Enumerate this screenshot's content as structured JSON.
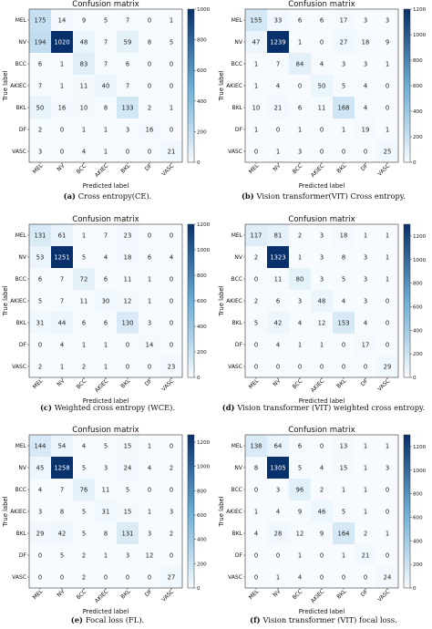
{
  "figure": {
    "class_labels": [
      "MEL",
      "NV",
      "BCC",
      "AKIEC",
      "BKL",
      "DF",
      "VASC"
    ]
  },
  "chart_data": [
    {
      "type": "heatmap",
      "panel": "a",
      "title": "Confusion matrix",
      "xlabel": "Predicted label",
      "ylabel": "True label",
      "caption_letter": "(a)",
      "caption_text": "Cross entropy(CE).",
      "x_categories": [
        "MEL",
        "NV",
        "BCC",
        "AKIEC",
        "BKL",
        "DF",
        "VASC"
      ],
      "y_categories": [
        "MEL",
        "NV",
        "BCC",
        "AKIEC",
        "BKL",
        "DF",
        "VASC"
      ],
      "matrix": [
        [
          175,
          14,
          9,
          5,
          7,
          0,
          1
        ],
        [
          194,
          1020,
          48,
          7,
          59,
          8,
          5
        ],
        [
          6,
          1,
          83,
          7,
          6,
          0,
          0
        ],
        [
          7,
          1,
          11,
          40,
          7,
          0,
          0
        ],
        [
          50,
          16,
          10,
          8,
          133,
          2,
          1
        ],
        [
          2,
          0,
          1,
          1,
          3,
          16,
          0
        ],
        [
          3,
          0,
          4,
          1,
          0,
          0,
          21
        ]
      ],
      "colorbar_range": [
        0,
        1000
      ],
      "colorbar_ticks": [
        "0",
        "200",
        "400",
        "600",
        "800",
        "1000"
      ]
    },
    {
      "type": "heatmap",
      "panel": "b",
      "title": "Confusion matrix",
      "xlabel": "Predicted label",
      "ylabel": "True label",
      "caption_letter": "(b)",
      "caption_text": "Vision transformer(VIT) Cross entropy.",
      "x_categories": [
        "MEL",
        "NV",
        "BCC",
        "AKIEC",
        "BKL",
        "DF",
        "VASC"
      ],
      "y_categories": [
        "MEL",
        "NV",
        "BCC",
        "AKIEC",
        "BKL",
        "DF",
        "VASC"
      ],
      "matrix": [
        [
          155,
          33,
          6,
          6,
          17,
          3,
          3
        ],
        [
          47,
          1239,
          1,
          0,
          27,
          18,
          9
        ],
        [
          1,
          7,
          84,
          4,
          3,
          3,
          1
        ],
        [
          1,
          4,
          0,
          50,
          5,
          4,
          0
        ],
        [
          10,
          21,
          6,
          11,
          168,
          4,
          0
        ],
        [
          1,
          0,
          1,
          0,
          1,
          19,
          1
        ],
        [
          0,
          1,
          3,
          0,
          0,
          0,
          25
        ]
      ],
      "colorbar_range": [
        0,
        1200
      ],
      "colorbar_ticks": [
        "0",
        "200",
        "400",
        "600",
        "800",
        "1000",
        "1200"
      ]
    },
    {
      "type": "heatmap",
      "panel": "c",
      "title": "Confusion matrix",
      "xlabel": "Predicted label",
      "ylabel": "True label",
      "caption_letter": "(c)",
      "caption_text": "Weighted cross entropy (WCE).",
      "x_categories": [
        "MEL",
        "NV",
        "BCC",
        "AKIEC",
        "BKL",
        "DF",
        "VASC"
      ],
      "y_categories": [
        "MEL",
        "NV",
        "BCC",
        "AKIEC",
        "BKL",
        "DF",
        "VASC"
      ],
      "matrix": [
        [
          131,
          61,
          1,
          7,
          23,
          0,
          0
        ],
        [
          53,
          1251,
          5,
          4,
          18,
          6,
          4
        ],
        [
          6,
          7,
          72,
          6,
          11,
          1,
          0
        ],
        [
          5,
          7,
          11,
          30,
          12,
          1,
          0
        ],
        [
          31,
          44,
          6,
          6,
          130,
          3,
          0
        ],
        [
          0,
          4,
          1,
          1,
          0,
          14,
          0
        ],
        [
          2,
          1,
          2,
          1,
          0,
          0,
          23
        ]
      ],
      "colorbar_range": [
        0,
        1200
      ],
      "colorbar_ticks": [
        "0",
        "200",
        "400",
        "600",
        "800",
        "1000",
        "1200"
      ]
    },
    {
      "type": "heatmap",
      "panel": "d",
      "title": "Confusion matrix",
      "xlabel": "Predicted label",
      "ylabel": "True label",
      "caption_letter": "(d)",
      "caption_text": "Vision transformer (VIT) weighted cross entropy.",
      "x_categories": [
        "MEL",
        "NV",
        "BCC",
        "AKIEC",
        "BKL",
        "DF",
        "VASC"
      ],
      "y_categories": [
        "MEL",
        "NV",
        "BCC",
        "AKIEC",
        "BKL",
        "DF",
        "VASC"
      ],
      "matrix": [
        [
          117,
          81,
          2,
          3,
          18,
          1,
          1
        ],
        [
          2,
          1323,
          1,
          3,
          8,
          3,
          1
        ],
        [
          0,
          11,
          80,
          3,
          5,
          3,
          1
        ],
        [
          2,
          6,
          3,
          48,
          4,
          3,
          0
        ],
        [
          5,
          42,
          4,
          12,
          153,
          4,
          0
        ],
        [
          0,
          4,
          1,
          1,
          0,
          17,
          0
        ],
        [
          0,
          0,
          0,
          0,
          0,
          0,
          29
        ]
      ],
      "colorbar_range": [
        0,
        1300
      ],
      "colorbar_ticks": [
        "0",
        "200",
        "400",
        "600",
        "800",
        "1000",
        "1200"
      ]
    },
    {
      "type": "heatmap",
      "panel": "e",
      "title": "Confusion matrix",
      "xlabel": "Predicted label",
      "ylabel": "True label",
      "caption_letter": "(e)",
      "caption_text": "Focal loss (FL).",
      "x_categories": [
        "MEL",
        "NV",
        "BCC",
        "AKIEC",
        "BKL",
        "DF",
        "VASC"
      ],
      "y_categories": [
        "MEL",
        "NV",
        "BCC",
        "AKIEC",
        "BKL",
        "DF",
        "VASC"
      ],
      "matrix": [
        [
          144,
          54,
          4,
          5,
          15,
          1,
          0
        ],
        [
          45,
          1258,
          5,
          3,
          24,
          4,
          2
        ],
        [
          4,
          7,
          76,
          11,
          5,
          0,
          0
        ],
        [
          3,
          8,
          5,
          31,
          15,
          1,
          3
        ],
        [
          29,
          42,
          5,
          8,
          131,
          3,
          2
        ],
        [
          0,
          5,
          2,
          1,
          3,
          12,
          0
        ],
        [
          0,
          0,
          2,
          0,
          0,
          0,
          27
        ]
      ],
      "colorbar_range": [
        0,
        1260
      ],
      "colorbar_ticks": [
        "0",
        "200",
        "400",
        "600",
        "800",
        "1000",
        "1200"
      ]
    },
    {
      "type": "heatmap",
      "panel": "f",
      "title": "Confusion matrix",
      "xlabel": "Predicted label",
      "ylabel": "True label",
      "caption_letter": "(f)",
      "caption_text": "Vision transformer (VIT) focal loss.",
      "x_categories": [
        "MEL",
        "NV",
        "BCC",
        "AKIEC",
        "BKL",
        "DF",
        "VASC"
      ],
      "y_categories": [
        "MEL",
        "NV",
        "BCC",
        "AKIEC",
        "BKL",
        "DF",
        "VASC"
      ],
      "matrix": [
        [
          138,
          64,
          6,
          0,
          13,
          1,
          1
        ],
        [
          8,
          1305,
          5,
          4,
          15,
          1,
          3
        ],
        [
          0,
          3,
          96,
          2,
          1,
          1,
          0
        ],
        [
          1,
          4,
          9,
          46,
          5,
          1,
          0
        ],
        [
          4,
          28,
          12,
          9,
          164,
          2,
          1
        ],
        [
          0,
          0,
          1,
          0,
          1,
          21,
          0
        ],
        [
          0,
          1,
          4,
          0,
          0,
          0,
          24
        ]
      ],
      "colorbar_range": [
        0,
        1300
      ],
      "colorbar_ticks": [
        "0",
        "200",
        "400",
        "600",
        "800",
        "1000",
        "1200"
      ]
    }
  ],
  "colors": {
    "cmap_low": "#f7fbff",
    "cmap_mid": "#6baed6",
    "cmap_high": "#08306b",
    "text_dark": "#222222",
    "text_light": "#ffffff"
  }
}
